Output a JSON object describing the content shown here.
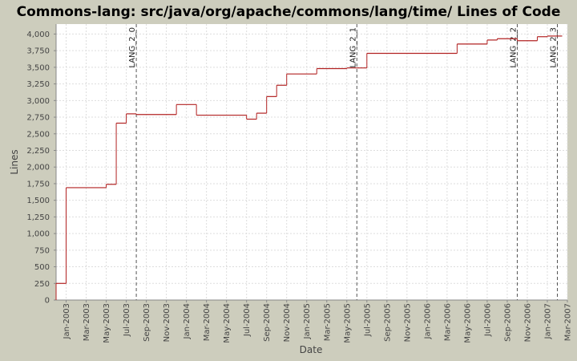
{
  "chart_data": {
    "type": "step-line",
    "title": "Commons-lang: src/java/org/apache/commons/lang/time/ Lines of Code",
    "x_label": "Date",
    "y_label": "Lines",
    "x": [
      "2002-12",
      "2003-01",
      "2003-05",
      "2003-06",
      "2003-07",
      "2003-08",
      "2003-12",
      "2004-02",
      "2004-07",
      "2004-08",
      "2004-09",
      "2004-10",
      "2004-11",
      "2005-02",
      "2005-05",
      "2005-07",
      "2006-04",
      "2006-07",
      "2006-08",
      "2006-10",
      "2006-12",
      "2007-01",
      "2007-02"
    ],
    "series": [
      {
        "name": "Lines of Code",
        "color": "#b22222",
        "values": [
          250,
          1690,
          1740,
          2660,
          2800,
          2790,
          2940,
          2780,
          2720,
          2810,
          3060,
          3230,
          3400,
          3480,
          3490,
          3710,
          3850,
          3910,
          3930,
          3900,
          3960,
          3970,
          3970
        ]
      }
    ],
    "xlim": [
      "2002-12",
      "2007-03"
    ],
    "xticks": [
      {
        "value": "2003-01",
        "label": "Jan-2003"
      },
      {
        "value": "2003-03",
        "label": "Mar-2003"
      },
      {
        "value": "2003-05",
        "label": "May-2003"
      },
      {
        "value": "2003-07",
        "label": "Jul-2003"
      },
      {
        "value": "2003-09",
        "label": "Sep-2003"
      },
      {
        "value": "2003-11",
        "label": "Nov-2003"
      },
      {
        "value": "2004-01",
        "label": "Jan-2004"
      },
      {
        "value": "2004-03",
        "label": "Mar-2004"
      },
      {
        "value": "2004-05",
        "label": "May-2004"
      },
      {
        "value": "2004-07",
        "label": "Jul-2004"
      },
      {
        "value": "2004-09",
        "label": "Sep-2004"
      },
      {
        "value": "2004-11",
        "label": "Nov-2004"
      },
      {
        "value": "2005-01",
        "label": "Jan-2005"
      },
      {
        "value": "2005-03",
        "label": "Mar-2005"
      },
      {
        "value": "2005-05",
        "label": "May-2005"
      },
      {
        "value": "2005-07",
        "label": "Jul-2005"
      },
      {
        "value": "2005-09",
        "label": "Sep-2005"
      },
      {
        "value": "2005-11",
        "label": "Nov-2005"
      },
      {
        "value": "2006-01",
        "label": "Jan-2006"
      },
      {
        "value": "2006-03",
        "label": "Mar-2006"
      },
      {
        "value": "2006-05",
        "label": "May-2006"
      },
      {
        "value": "2006-07",
        "label": "Jul-2006"
      },
      {
        "value": "2006-09",
        "label": "Sep-2006"
      },
      {
        "value": "2006-11",
        "label": "Nov-2006"
      },
      {
        "value": "2007-01",
        "label": "Jan-2007"
      },
      {
        "value": "2007-03",
        "label": "Mar-2007"
      }
    ],
    "ylim": [
      0,
      4150
    ],
    "yticks": [
      0,
      250,
      500,
      750,
      {
        "value": 1000,
        "label": "1,000"
      },
      {
        "value": 1250,
        "label": "1,250"
      },
      {
        "value": 1500,
        "label": "1,500"
      },
      {
        "value": 1750,
        "label": "1,750"
      },
      {
        "value": 2000,
        "label": "2,000"
      },
      {
        "value": 2250,
        "label": "2,250"
      },
      {
        "value": 2500,
        "label": "2,500"
      },
      {
        "value": 2750,
        "label": "2,750"
      },
      {
        "value": 3000,
        "label": "3,000"
      },
      {
        "value": 3250,
        "label": "3,250"
      },
      {
        "value": 3500,
        "label": "3,500"
      },
      {
        "value": 3750,
        "label": "3,750"
      },
      {
        "value": 4000,
        "label": "4,000"
      }
    ],
    "grid": true,
    "markers": [
      {
        "label": "LANG_2_0",
        "x": "2003-08"
      },
      {
        "label": "LANG_2_1",
        "x": "2005-06"
      },
      {
        "label": "LANG_2_2",
        "x": "2006-10"
      },
      {
        "label": "LANG_2_3",
        "x": "2007-02"
      }
    ]
  }
}
